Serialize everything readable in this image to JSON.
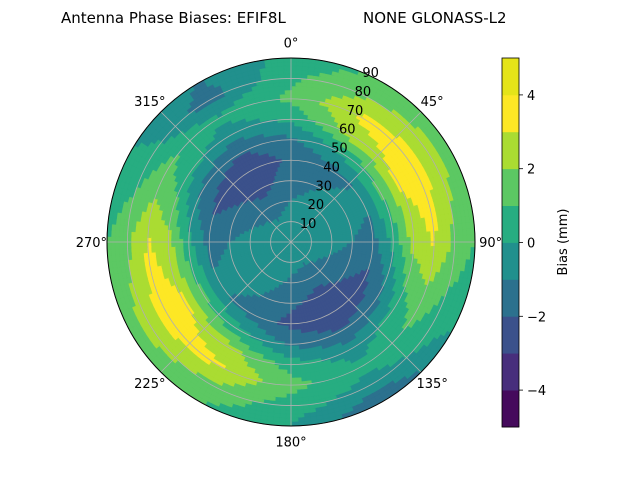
{
  "chart_data": {
    "type": "heatmap",
    "projection": "polar",
    "title_left": "Antenna Phase Biases: EFIF8L",
    "title_right": "NONE GLONASS-L2",
    "theta_direction": "clockwise",
    "theta_zero": "top",
    "theta_ticks": [
      "0°",
      "45°",
      "90°",
      "135°",
      "180°",
      "225°",
      "270°",
      "315°"
    ],
    "r_ticks": [
      "10",
      "20",
      "30",
      "40",
      "50",
      "60",
      "70",
      "80",
      "90"
    ],
    "r_range": [
      0,
      90
    ],
    "grid": true,
    "colormap": "viridis",
    "colorbar": {
      "label": "Bias (mm)",
      "range": [
        -5,
        5
      ],
      "levels": [
        -5,
        -4,
        -3,
        -2,
        -1,
        0,
        1,
        2,
        3,
        4,
        5
      ],
      "tick_labels": [
        "−4",
        "−2",
        "0",
        "2",
        "4"
      ],
      "tick_values": [
        -4,
        -2,
        0,
        2,
        4
      ],
      "colors": [
        "#450a5c",
        "#472e7c",
        "#3b518b",
        "#2c718e",
        "#21908d",
        "#27ad81",
        "#5cc863",
        "#aadc32",
        "#fde725",
        "#e5e419"
      ]
    },
    "zenith_angle_grid_deg": [
      0,
      10,
      20,
      30,
      40,
      50,
      60,
      70,
      80,
      90
    ],
    "azimuth_grid_deg": [
      0,
      30,
      60,
      90,
      120,
      150,
      180,
      210,
      240,
      270,
      300,
      330
    ],
    "bias_mm": [
      [
        0.0,
        0.0,
        0.0,
        0.0,
        0.0,
        0.0,
        0.0,
        0.0,
        0.0,
        0.0,
        0.0,
        0.0
      ],
      [
        -0.5,
        -0.3,
        -0.2,
        -0.3,
        -0.6,
        -0.8,
        -0.6,
        -0.3,
        -0.2,
        -0.3,
        -0.6,
        -0.8
      ],
      [
        -1.0,
        -0.6,
        -0.4,
        -0.6,
        -1.2,
        -1.6,
        -1.2,
        -0.6,
        -0.4,
        -0.6,
        -1.2,
        -1.6
      ],
      [
        -1.5,
        -1.0,
        -0.6,
        -1.0,
        -1.8,
        -2.4,
        -1.8,
        -1.0,
        -0.6,
        -1.0,
        -1.8,
        -2.4
      ],
      [
        -1.8,
        -1.4,
        -0.8,
        -1.4,
        -2.3,
        -2.8,
        -2.3,
        -1.4,
        -0.8,
        -1.4,
        -2.3,
        -2.8
      ],
      [
        -1.2,
        0.2,
        1.2,
        0.3,
        -1.2,
        -2.0,
        -1.2,
        0.3,
        1.2,
        0.3,
        -1.2,
        -2.0
      ],
      [
        0.2,
        2.5,
        3.2,
        2.4,
        0.5,
        -0.5,
        0.5,
        2.4,
        3.2,
        2.4,
        0.5,
        -0.5
      ],
      [
        1.2,
        3.2,
        3.6,
        3.1,
        1.4,
        0.2,
        1.4,
        3.1,
        3.6,
        3.1,
        1.4,
        0.2
      ],
      [
        0.8,
        2.0,
        2.4,
        1.8,
        0.5,
        -0.5,
        0.5,
        1.8,
        2.4,
        1.8,
        0.5,
        -1.5
      ],
      [
        0.3,
        1.2,
        1.6,
        1.0,
        0.0,
        -2.0,
        0.0,
        1.0,
        1.6,
        1.0,
        0.0,
        -1.0
      ]
    ]
  }
}
